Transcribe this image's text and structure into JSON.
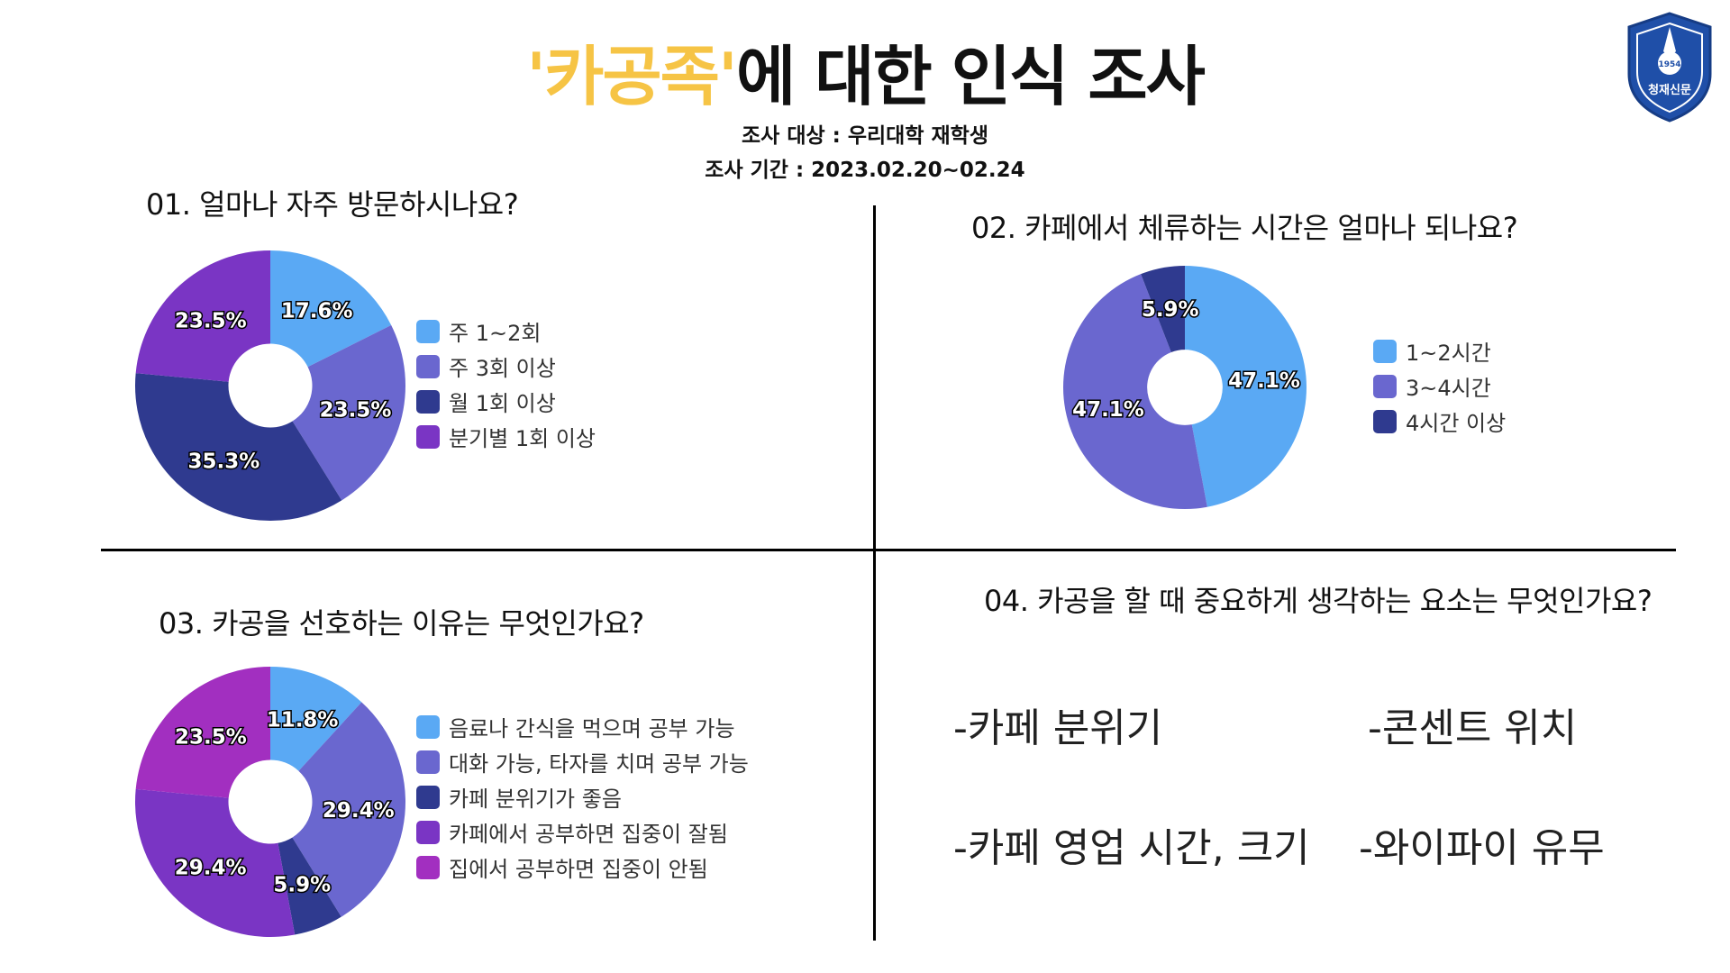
{
  "header": {
    "title_quote": "'카공족'",
    "title_rest": "에 대한 인식 조사",
    "target": "조사 대상 :  우리대학 재학생",
    "period": "조사 기간 : 2023.02.20~02.24"
  },
  "logo": {
    "year": "1954",
    "name": "청재신문",
    "icon": "pen-shield-logo-icon",
    "color": "#1f4fa8"
  },
  "questions": {
    "q1": "01. 얼마나 자주 방문하시나요?",
    "q2": "02. 카페에서 체류하는 시간은 얼마나 되나요?",
    "q3": "03. 카공을 선호하는 이유는 무엇인가요?",
    "q4": "04. 카공을 할 때 중요하게 생각하는 요소는 무엇인가요?"
  },
  "factors": [
    "-카페 분위기",
    "-콘센트 위치",
    "-카페 영업 시간, 크기",
    "-와이파이 유무"
  ],
  "chart_data": [
    {
      "type": "pie",
      "title": "",
      "categories": [
        "주 1~2회",
        "주 3회 이상",
        "월 1회 이상",
        "분기별 1회 이상"
      ],
      "values": [
        17.6,
        23.5,
        35.3,
        23.5
      ],
      "labels": [
        "17.6%",
        "23.5%",
        "35.3%",
        "23.5%"
      ],
      "colors": [
        "#5aa9f4",
        "#6a67cf",
        "#2f3a8f",
        "#7a35c4"
      ],
      "legend": "right"
    },
    {
      "type": "pie",
      "title": "",
      "categories": [
        "1~2시간",
        "3~4시간",
        "4시간 이상"
      ],
      "values": [
        47.1,
        47.1,
        5.9
      ],
      "labels": [
        "47.1%",
        "47.1%",
        "5.9%"
      ],
      "colors": [
        "#5aa9f4",
        "#6a67cf",
        "#2f3a8f"
      ],
      "legend": "right"
    },
    {
      "type": "pie",
      "title": "",
      "categories": [
        "음료나 간식을 먹으며 공부 가능",
        "대화 가능, 타자를 치며 공부 가능",
        "카페 분위기가 좋음",
        "카페에서 공부하면 집중이 잘됨",
        "집에서 공부하면 집중이 안됨"
      ],
      "values": [
        11.8,
        29.4,
        5.9,
        29.4,
        23.5
      ],
      "labels": [
        "11.8%",
        "29.4%",
        "5.9%",
        "29.4%",
        "23.5%"
      ],
      "colors": [
        "#5aa9f4",
        "#6a67cf",
        "#2f3a8f",
        "#7a35c4",
        "#a22fc0"
      ],
      "legend": "right"
    }
  ]
}
